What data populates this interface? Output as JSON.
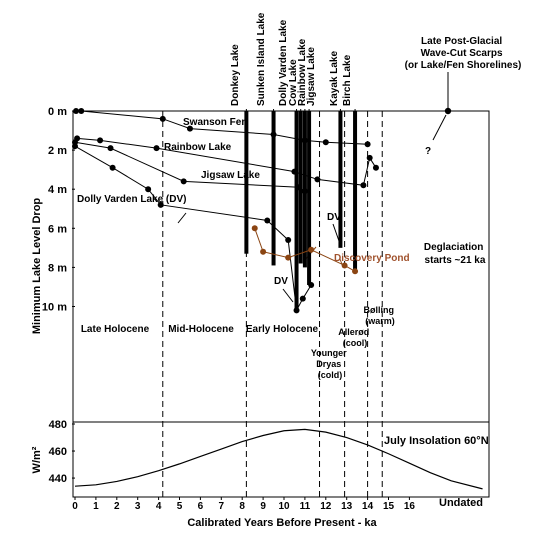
{
  "chart_data": [
    {
      "type": "line",
      "panel": "lake-level",
      "ylabel": "Minimum Lake Level Drop",
      "ylim": [
        0,
        13.5
      ],
      "y_inverted": true,
      "y_ticks": [
        "0 m",
        "2 m",
        "4 m",
        "6 m",
        "8 m",
        "10 m"
      ],
      "y_tick_values": [
        0,
        2,
        4,
        6,
        8,
        10
      ],
      "series": [
        {
          "name": "Swanson Fen",
          "color": "#000000",
          "x": [
            0.05,
            0.3,
            4.2,
            5.5,
            9.5,
            11.0,
            12.0,
            14.0
          ],
          "y": [
            0,
            0,
            0.4,
            0.9,
            1.2,
            1.5,
            1.6,
            1.7
          ]
        },
        {
          "name": "Rainbow Lake",
          "color": "#000000",
          "x": [
            0.1,
            1.2,
            3.9,
            10.5,
            11.6,
            13.8,
            14.1,
            14.4
          ],
          "y": [
            1.4,
            1.5,
            1.9,
            3.1,
            3.5,
            3.8,
            2.4,
            2.9
          ]
        },
        {
          "name": "Jigsaw Lake",
          "color": "#000000",
          "x": [
            0.0,
            1.7,
            5.2,
            10.7,
            11.0
          ],
          "y": [
            1.6,
            1.9,
            3.6,
            3.9,
            4.1
          ]
        },
        {
          "name": "Dolly Varden Lake (DV)",
          "color": "#000000",
          "x": [
            0.0,
            1.8,
            3.5,
            4.1,
            9.2,
            10.2,
            10.6,
            10.9,
            11.3
          ],
          "y": [
            1.8,
            2.9,
            4.0,
            4.8,
            5.6,
            6.6,
            10.2,
            9.6,
            8.9
          ]
        },
        {
          "name": "Discovery Pond",
          "color": "#8b4513",
          "x": [
            8.6,
            9.0,
            10.2,
            11.3,
            12.9,
            13.4
          ],
          "y": [
            6.0,
            7.2,
            7.5,
            7.1,
            7.9,
            8.2
          ]
        }
      ],
      "lake_bars": [
        {
          "name": "Donkey Lake",
          "x": 8.2,
          "top": 0,
          "bottom": 7.3
        },
        {
          "name": "Sunken Island Lake",
          "x": 9.5,
          "top": 0,
          "bottom": 7.9
        },
        {
          "name": "Dolly Varden Lake",
          "x": 10.6,
          "top": 0,
          "bottom": 10.2
        },
        {
          "name": "Cow Lake",
          "x": 10.8,
          "top": 0,
          "bottom": 7.8
        },
        {
          "name": "Rainbow Lake",
          "x": 11.0,
          "top": 0,
          "bottom": 8.0
        },
        {
          "name": "Jigsaw Lake",
          "x": 11.2,
          "top": 0,
          "bottom": 8.9
        },
        {
          "name": "Kayak Lake",
          "x": 12.7,
          "top": 0,
          "bottom": 7.0
        },
        {
          "name": "Birch Lake",
          "x": 13.4,
          "top": 0,
          "bottom": 8.2
        }
      ],
      "period_boundaries": [
        4.2,
        8.2,
        11.7,
        12.9,
        14.0,
        14.7
      ]
    },
    {
      "type": "line",
      "panel": "insolation",
      "title": "July Insolation 60°N",
      "ylabel": "W/m²",
      "ylim": [
        425,
        480
      ],
      "y_ticks": [
        "480",
        "460",
        "440"
      ],
      "y_tick_values": [
        480,
        460,
        440
      ],
      "series": [
        {
          "name": "July Insolation 60°N",
          "color": "#000000",
          "x": [
            0,
            1,
            2,
            3,
            4,
            5,
            6,
            7,
            8,
            9,
            10,
            11,
            12,
            13,
            14,
            15,
            16,
            17,
            18,
            19.5
          ],
          "y": [
            434,
            435,
            437.5,
            441,
            445.5,
            450.5,
            456,
            461.5,
            467,
            471.5,
            475,
            476,
            474,
            470,
            464.5,
            458,
            451,
            444,
            438,
            432
          ]
        }
      ]
    }
  ],
  "axis": {
    "xlabel": "Calibrated Years Before Present  - ka",
    "x_ticks": [
      "0",
      "1",
      "2",
      "3",
      "4",
      "5",
      "6",
      "7",
      "8",
      "9",
      "10",
      "11",
      "12",
      "13",
      "14",
      "15",
      "16"
    ],
    "undated_label": "Undated"
  },
  "labels": {
    "late_post_glacial": [
      "Late Post-Glacial",
      "Wave-Cut Scarps",
      "(or Lake/Fen Shorelines)"
    ],
    "question_mark": "?",
    "dv_a": "DV",
    "dv_b": "DV",
    "deglaciation": [
      "Deglaciation",
      "starts ~21 ka"
    ],
    "late_holocene": "Late Holocene",
    "mid_holocene": "Mid-Holocene",
    "early_holocene": "Early Holocene",
    "younger_dryas": [
      "Younger",
      "Dryas",
      "(cold)"
    ],
    "allerod": [
      "Allerød",
      "(cool)"
    ],
    "bolling": [
      "Bølling",
      "(warm)"
    ]
  },
  "colors": {
    "black": "#000000",
    "discovery": "#8b4513",
    "discovery_text": "#a0522d"
  }
}
